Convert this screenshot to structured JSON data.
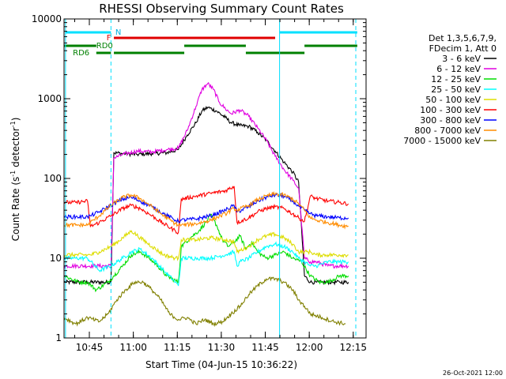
{
  "chart_data": {
    "type": "line",
    "title": "RHESSI Observing Summary Count Rates",
    "xlabel": "Start Time (04-Jun-15 10:36:22)",
    "ylabel": "Count Rate (s",
    "ylabel_sup1": "-1",
    "ylabel_mid": " detector",
    "ylabel_sup2": "-1",
    "ylabel_end": ")",
    "y_scale": "log",
    "ylim": [
      1,
      10000
    ],
    "x_unit": "minutes since 10:36:22",
    "xlim": [
      0,
      103
    ],
    "x_ticks": [
      {
        "label": "10:45",
        "value": 8.63
      },
      {
        "label": "11:00",
        "value": 23.63
      },
      {
        "label": "11:15",
        "value": 38.63
      },
      {
        "label": "11:30",
        "value": 53.63
      },
      {
        "label": "11:45",
        "value": 68.63
      },
      {
        "label": "12:00",
        "value": 83.63
      },
      {
        "label": "12:15",
        "value": 98.63
      }
    ],
    "y_ticks": [
      {
        "label": "1",
        "value": 1
      },
      {
        "label": "10",
        "value": 10
      },
      {
        "label": "100",
        "value": 100
      },
      {
        "label": "1000",
        "value": 1000
      },
      {
        "label": "10000",
        "value": 10000
      }
    ],
    "legend_header": [
      "Det 1,3,5,6,7,9,",
      "FDecim 1, Att 0"
    ],
    "legend_placement": "right",
    "series": [
      {
        "name": "3 - 6 keV",
        "color": "#000000",
        "x": [
          0,
          16,
          17,
          20,
          25,
          30,
          35,
          39,
          42,
          45,
          47,
          49,
          52,
          55,
          57,
          60,
          63,
          66,
          69,
          72,
          75,
          78,
          80,
          82,
          84,
          86,
          88,
          92,
          94,
          97
        ],
        "y": [
          5,
          5,
          210,
          205,
          200,
          205,
          210,
          230,
          350,
          500,
          700,
          780,
          700,
          580,
          500,
          460,
          450,
          380,
          300,
          220,
          160,
          120,
          90,
          6,
          5,
          5,
          5,
          5,
          5,
          5
        ]
      },
      {
        "name": "6 - 12 keV",
        "color": "#e000e0",
        "x": [
          0,
          16,
          17,
          20,
          25,
          30,
          35,
          39,
          42,
          45,
          47,
          49,
          51,
          53,
          55,
          57,
          60,
          63,
          66,
          69,
          72,
          75,
          78,
          80,
          82,
          84,
          86,
          90,
          94,
          97
        ],
        "y": [
          8,
          8,
          180,
          200,
          220,
          215,
          230,
          240,
          400,
          800,
          1300,
          1550,
          1300,
          900,
          750,
          650,
          720,
          600,
          430,
          300,
          190,
          130,
          95,
          75,
          10,
          9,
          9,
          8,
          8,
          8
        ]
      },
      {
        "name": "12 - 25 keV",
        "color": "#00dd00",
        "x": [
          0,
          5,
          8,
          11,
          15,
          17,
          20,
          23,
          26,
          29,
          32,
          35,
          39,
          40,
          43,
          46,
          49,
          50,
          52,
          54,
          56,
          58,
          60,
          62,
          64,
          66,
          69,
          72,
          75,
          78,
          81,
          84,
          87,
          90,
          94,
          97
        ],
        "y": [
          6,
          5,
          5,
          4,
          5,
          6,
          8,
          11,
          12,
          10,
          8,
          6,
          5,
          14,
          18,
          22,
          30,
          35,
          26,
          17,
          14,
          16,
          19,
          13,
          16,
          12,
          10,
          11,
          12,
          10,
          9,
          6,
          5,
          5,
          6,
          6
        ]
      },
      {
        "name": "25 - 50 keV",
        "color": "#00ffff",
        "x": [
          0,
          4,
          8,
          12,
          16,
          20,
          23,
          26,
          30,
          34,
          38,
          39,
          40,
          45,
          50,
          55,
          58,
          59,
          60,
          63,
          66,
          69,
          72,
          75,
          78,
          80,
          82,
          84,
          86,
          90,
          94,
          97
        ],
        "y": [
          10,
          10,
          10,
          7,
          8,
          10,
          12,
          13,
          10,
          7,
          5,
          4.5,
          10,
          10,
          10,
          11,
          12,
          8,
          9,
          10,
          12,
          14,
          15,
          14,
          12,
          10,
          9,
          8,
          8,
          9,
          9,
          9
        ]
      },
      {
        "name": "50 - 100 keV",
        "color": "#dddd00",
        "x": [
          0,
          4,
          8,
          9,
          12,
          16,
          20,
          23,
          26,
          30,
          34,
          38,
          39,
          40,
          45,
          50,
          55,
          58,
          59,
          63,
          66,
          69,
          72,
          75,
          78,
          80,
          82,
          84,
          86,
          90,
          94,
          97
        ],
        "y": [
          11,
          11,
          11,
          11,
          12,
          14,
          18,
          22,
          18,
          14,
          11,
          10,
          10,
          17,
          17,
          18,
          17,
          16,
          12,
          14,
          17,
          19,
          20,
          18,
          15,
          12,
          12,
          12,
          11,
          11,
          11,
          11
        ]
      },
      {
        "name": "100 - 300 keV",
        "color": "#ff0000",
        "x": [
          0,
          4,
          8,
          9,
          12,
          16,
          20,
          23,
          26,
          30,
          34,
          38,
          39,
          40,
          45,
          50,
          55,
          58,
          59,
          63,
          66,
          69,
          72,
          75,
          78,
          80,
          82,
          84,
          86,
          90,
          94,
          97
        ],
        "y": [
          50,
          50,
          52,
          25,
          28,
          34,
          42,
          46,
          42,
          34,
          27,
          22,
          21,
          55,
          60,
          65,
          70,
          80,
          28,
          32,
          38,
          42,
          44,
          42,
          36,
          32,
          29,
          60,
          56,
          52,
          50,
          48
        ]
      },
      {
        "name": "300 - 800 keV",
        "color": "#0000ff",
        "x": [
          0,
          4,
          8,
          9,
          12,
          16,
          20,
          23,
          26,
          30,
          34,
          38,
          39,
          40,
          45,
          50,
          55,
          58,
          59,
          63,
          66,
          69,
          72,
          75,
          78,
          80,
          82,
          84,
          86,
          90,
          94,
          97
        ],
        "y": [
          33,
          33,
          33,
          34,
          38,
          46,
          55,
          58,
          52,
          44,
          36,
          30,
          29,
          30,
          31,
          34,
          40,
          46,
          38,
          44,
          52,
          58,
          62,
          60,
          52,
          45,
          40,
          36,
          34,
          33,
          32,
          32
        ]
      },
      {
        "name": "800 - 7000 keV",
        "color": "#ff8c00",
        "x": [
          0,
          4,
          8,
          9,
          12,
          16,
          20,
          23,
          26,
          30,
          34,
          38,
          39,
          40,
          45,
          50,
          55,
          58,
          59,
          63,
          66,
          69,
          72,
          75,
          78,
          80,
          82,
          84,
          86,
          90,
          94,
          97
        ],
        "y": [
          26,
          26,
          26,
          28,
          34,
          46,
          58,
          62,
          56,
          44,
          34,
          27,
          26,
          26,
          27,
          30,
          36,
          42,
          40,
          46,
          54,
          60,
          64,
          62,
          55,
          48,
          40,
          32,
          30,
          28,
          26,
          25
        ]
      },
      {
        "name": "7000 - 15000 keV",
        "color": "#808000",
        "x": [
          0,
          4,
          8,
          12,
          15,
          18,
          21,
          24,
          27,
          30,
          33,
          36,
          39,
          42,
          45,
          48,
          51,
          54,
          57,
          60,
          63,
          66,
          69,
          72,
          75,
          78,
          80,
          82,
          84,
          88,
          92,
          96
        ],
        "y": [
          1.8,
          1.5,
          1.8,
          1.6,
          2,
          3,
          4,
          5,
          5,
          4,
          3,
          2,
          1.7,
          1.8,
          1.5,
          1.7,
          1.5,
          1.6,
          2,
          2.5,
          3.5,
          4.5,
          5.5,
          5.5,
          5,
          4,
          3,
          2.5,
          2,
          1.8,
          1.6,
          1.5
        ]
      }
    ],
    "attenuator_labels": [
      "N",
      "F",
      "RD0",
      "RD6"
    ],
    "timestamp": "26-Oct-2021 12:00"
  }
}
